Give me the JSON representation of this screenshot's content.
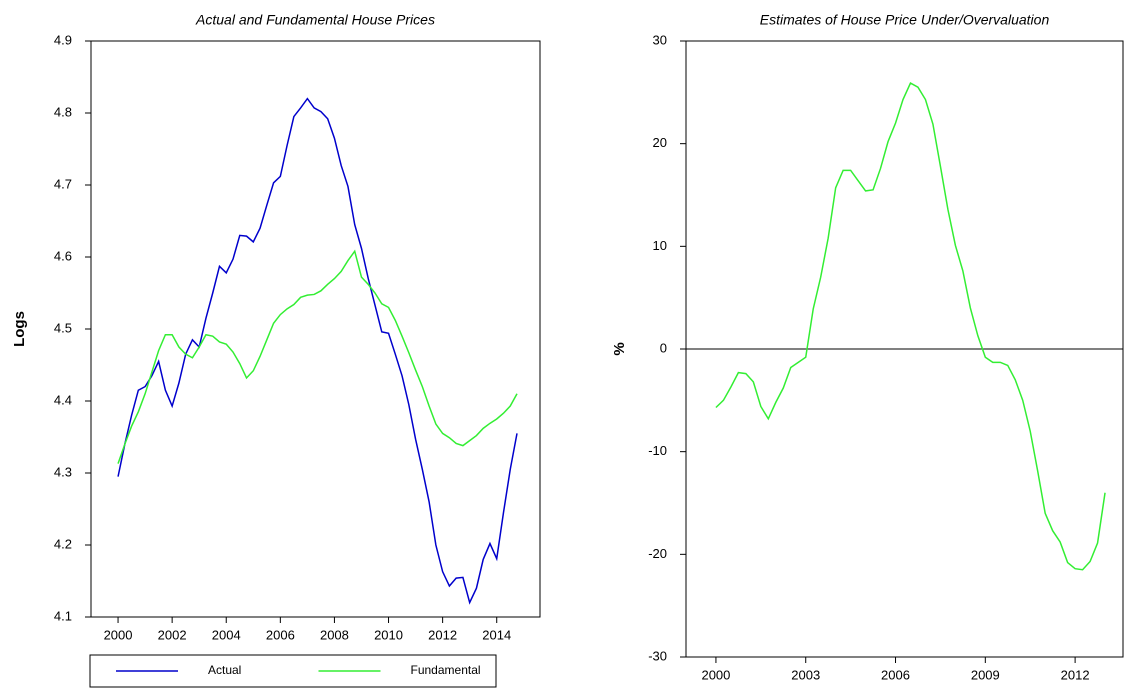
{
  "chart_data": [
    {
      "type": "line",
      "title": "Actual and Fundamental House Prices",
      "y_label": "Logs",
      "xlim": [
        1999,
        2015.6
      ],
      "xticks": [
        2000,
        2002,
        2004,
        2006,
        2008,
        2010,
        2012,
        2014
      ],
      "ylim": [
        4.1,
        4.9
      ],
      "yticks": [
        4.1,
        4.2,
        4.3,
        4.4,
        4.5,
        4.6,
        4.7,
        4.8,
        4.9
      ],
      "legend": "bottom",
      "x": [
        2000,
        2000.25,
        2000.5,
        2000.75,
        2001,
        2001.25,
        2001.5,
        2001.75,
        2002,
        2002.25,
        2002.5,
        2002.75,
        2003,
        2003.25,
        2003.5,
        2003.75,
        2004,
        2004.25,
        2004.5,
        2004.75,
        2005,
        2005.25,
        2005.5,
        2005.75,
        2006,
        2006.25,
        2006.5,
        2006.75,
        2007,
        2007.25,
        2007.5,
        2007.75,
        2008,
        2008.25,
        2008.5,
        2008.75,
        2009,
        2009.25,
        2009.5,
        2009.75,
        2010,
        2010.25,
        2010.5,
        2010.75,
        2011,
        2011.25,
        2011.5,
        2011.75,
        2012,
        2012.25,
        2012.5,
        2012.75,
        2013,
        2013.25,
        2013.5,
        2013.75,
        2014,
        2014.25,
        2014.5,
        2014.75
      ],
      "series": [
        {
          "name": "Actual",
          "color": "#0000cc",
          "values": [
            4.295,
            4.34,
            4.38,
            4.415,
            4.42,
            4.435,
            4.455,
            4.415,
            4.393,
            4.425,
            4.465,
            4.485,
            4.475,
            4.515,
            4.55,
            4.587,
            4.578,
            4.597,
            4.63,
            4.629,
            4.621,
            4.64,
            4.672,
            4.703,
            4.712,
            4.755,
            4.795,
            4.807,
            4.82,
            4.807,
            4.802,
            4.792,
            4.765,
            4.727,
            4.698,
            4.645,
            4.612,
            4.57,
            4.533,
            4.496,
            4.494,
            4.465,
            4.435,
            4.395,
            4.347,
            4.305,
            4.26,
            4.2,
            4.163,
            4.143,
            4.154,
            4.155,
            4.12,
            4.14,
            4.18,
            4.202,
            4.181,
            4.245,
            4.305,
            4.355
          ]
        },
        {
          "name": "Fundamental",
          "color": "#33ee33",
          "values": [
            4.313,
            4.34,
            4.365,
            4.385,
            4.41,
            4.44,
            4.47,
            4.492,
            4.492,
            4.475,
            4.465,
            4.46,
            4.475,
            4.492,
            4.49,
            4.482,
            4.479,
            4.468,
            4.452,
            4.432,
            4.442,
            4.462,
            4.485,
            4.508,
            4.52,
            4.528,
            4.534,
            4.544,
            4.547,
            4.548,
            4.553,
            4.562,
            4.57,
            4.58,
            4.595,
            4.608,
            4.572,
            4.562,
            4.55,
            4.535,
            4.53,
            4.512,
            4.49,
            4.467,
            4.443,
            4.42,
            4.393,
            4.368,
            4.355,
            4.349,
            4.341,
            4.338,
            4.345,
            4.352,
            4.362,
            4.369,
            4.375,
            4.383,
            4.393,
            4.41
          ]
        }
      ]
    },
    {
      "type": "line",
      "title": "Estimates of House Price Under/Overvaluation",
      "y_label": "%",
      "xlim": [
        1999,
        2013.6
      ],
      "xticks": [
        2000,
        2003,
        2006,
        2009,
        2012
      ],
      "ylim": [
        -30,
        30
      ],
      "yticks": [
        -30,
        -20,
        -10,
        0,
        10,
        20,
        30
      ],
      "zero_line": true,
      "x": [
        2000,
        2000.25,
        2000.5,
        2000.75,
        2001,
        2001.25,
        2001.5,
        2001.75,
        2002,
        2002.25,
        2002.5,
        2002.75,
        2003,
        2003.25,
        2003.5,
        2003.75,
        2004,
        2004.25,
        2004.5,
        2004.75,
        2005,
        2005.25,
        2005.5,
        2005.75,
        2006,
        2006.25,
        2006.5,
        2006.75,
        2007,
        2007.25,
        2007.5,
        2007.75,
        2008,
        2008.25,
        2008.5,
        2008.75,
        2009,
        2009.25,
        2009.5,
        2009.75,
        2010,
        2010.25,
        2010.5,
        2010.75,
        2011,
        2011.25,
        2011.5,
        2011.75,
        2012,
        2012.25,
        2012.5,
        2012.75,
        2013
      ],
      "series": [
        {
          "color": "#33ee33",
          "values": [
            -5.7,
            -5.0,
            -3.7,
            -2.3,
            -2.4,
            -3.2,
            -5.6,
            -6.8,
            -5.2,
            -3.8,
            -1.8,
            -1.3,
            -0.8,
            3.9,
            7.0,
            10.8,
            15.7,
            17.4,
            17.4,
            16.4,
            15.4,
            15.5,
            17.6,
            20.2,
            22.0,
            24.3,
            25.9,
            25.5,
            24.3,
            21.9,
            17.8,
            13.6,
            10.1,
            7.6,
            4.0,
            1.3,
            -0.8,
            -1.3,
            -1.3,
            -1.6,
            -3.0,
            -5.0,
            -8.0,
            -11.9,
            -16.0,
            -17.7,
            -18.8,
            -20.8,
            -21.4,
            -21.5,
            -20.7,
            -18.9,
            -14.0
          ]
        }
      ]
    }
  ]
}
